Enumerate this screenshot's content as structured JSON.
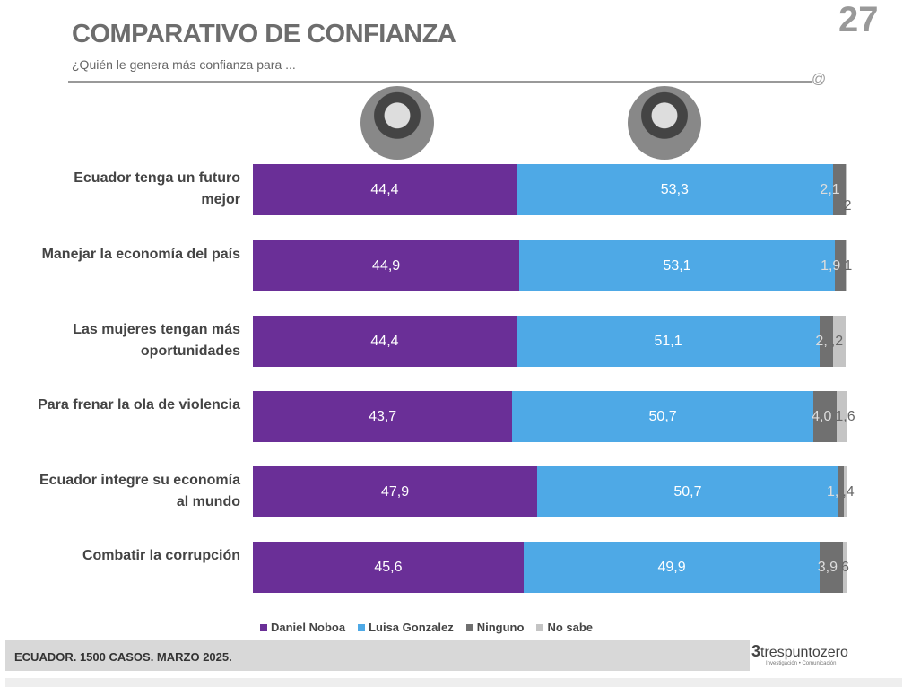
{
  "header": {
    "title": "COMPARATIVO DE CONFIANZA",
    "subtitle": "¿Quién le genera más confianza para ..."
  },
  "footer": {
    "note": "ECUADOR. 1500 CASOS. MARZO 2025.",
    "logo": "trespuntozero",
    "logo_tagline": "Investigación • Comunicación"
  },
  "chart_data": {
    "type": "bar",
    "stacked": true,
    "orientation": "horizontal",
    "categories": [
      "Ecuador tenga un futuro mejor",
      "Manejar la economía del país",
      "Las mujeres tengan más oportunidades",
      "Para frenar la ola de violencia",
      "Ecuador integre su economía al mundo",
      "Combatir la corrupción"
    ],
    "series": [
      {
        "name": "Daniel Noboa",
        "color": "#6a2f97",
        "values": [
          44.4,
          44.9,
          44.4,
          43.7,
          47.9,
          45.6
        ],
        "labels": [
          "44,4",
          "44,9",
          "44,4",
          "43,7",
          "47,9",
          "45,6"
        ]
      },
      {
        "name": "Luisa Gonzalez",
        "color": "#4ea9e6",
        "values": [
          53.3,
          53.1,
          51.1,
          50.7,
          50.7,
          49.9
        ],
        "labels": [
          "53,3",
          "53,1",
          "51,1",
          "50,7",
          "50,7",
          "49,9"
        ]
      },
      {
        "name": "Ninguno",
        "color": "#707070",
        "values": [
          2.1,
          1.9,
          2.2,
          4.0,
          1.0,
          3.9
        ],
        "labels": [
          "2,1",
          "1,9",
          "2,",
          "4,0",
          "1,",
          "3,9"
        ]
      },
      {
        "name": "No sabe",
        "color": "#c4c4c4",
        "values": [
          0.2,
          0.1,
          2.2,
          1.6,
          0.4,
          0.6
        ],
        "labels": [
          "2",
          "1",
          ",2",
          "1,6",
          ",4",
          "6"
        ]
      }
    ],
    "legend": "bottom",
    "xlim": [
      0,
      100
    ]
  }
}
